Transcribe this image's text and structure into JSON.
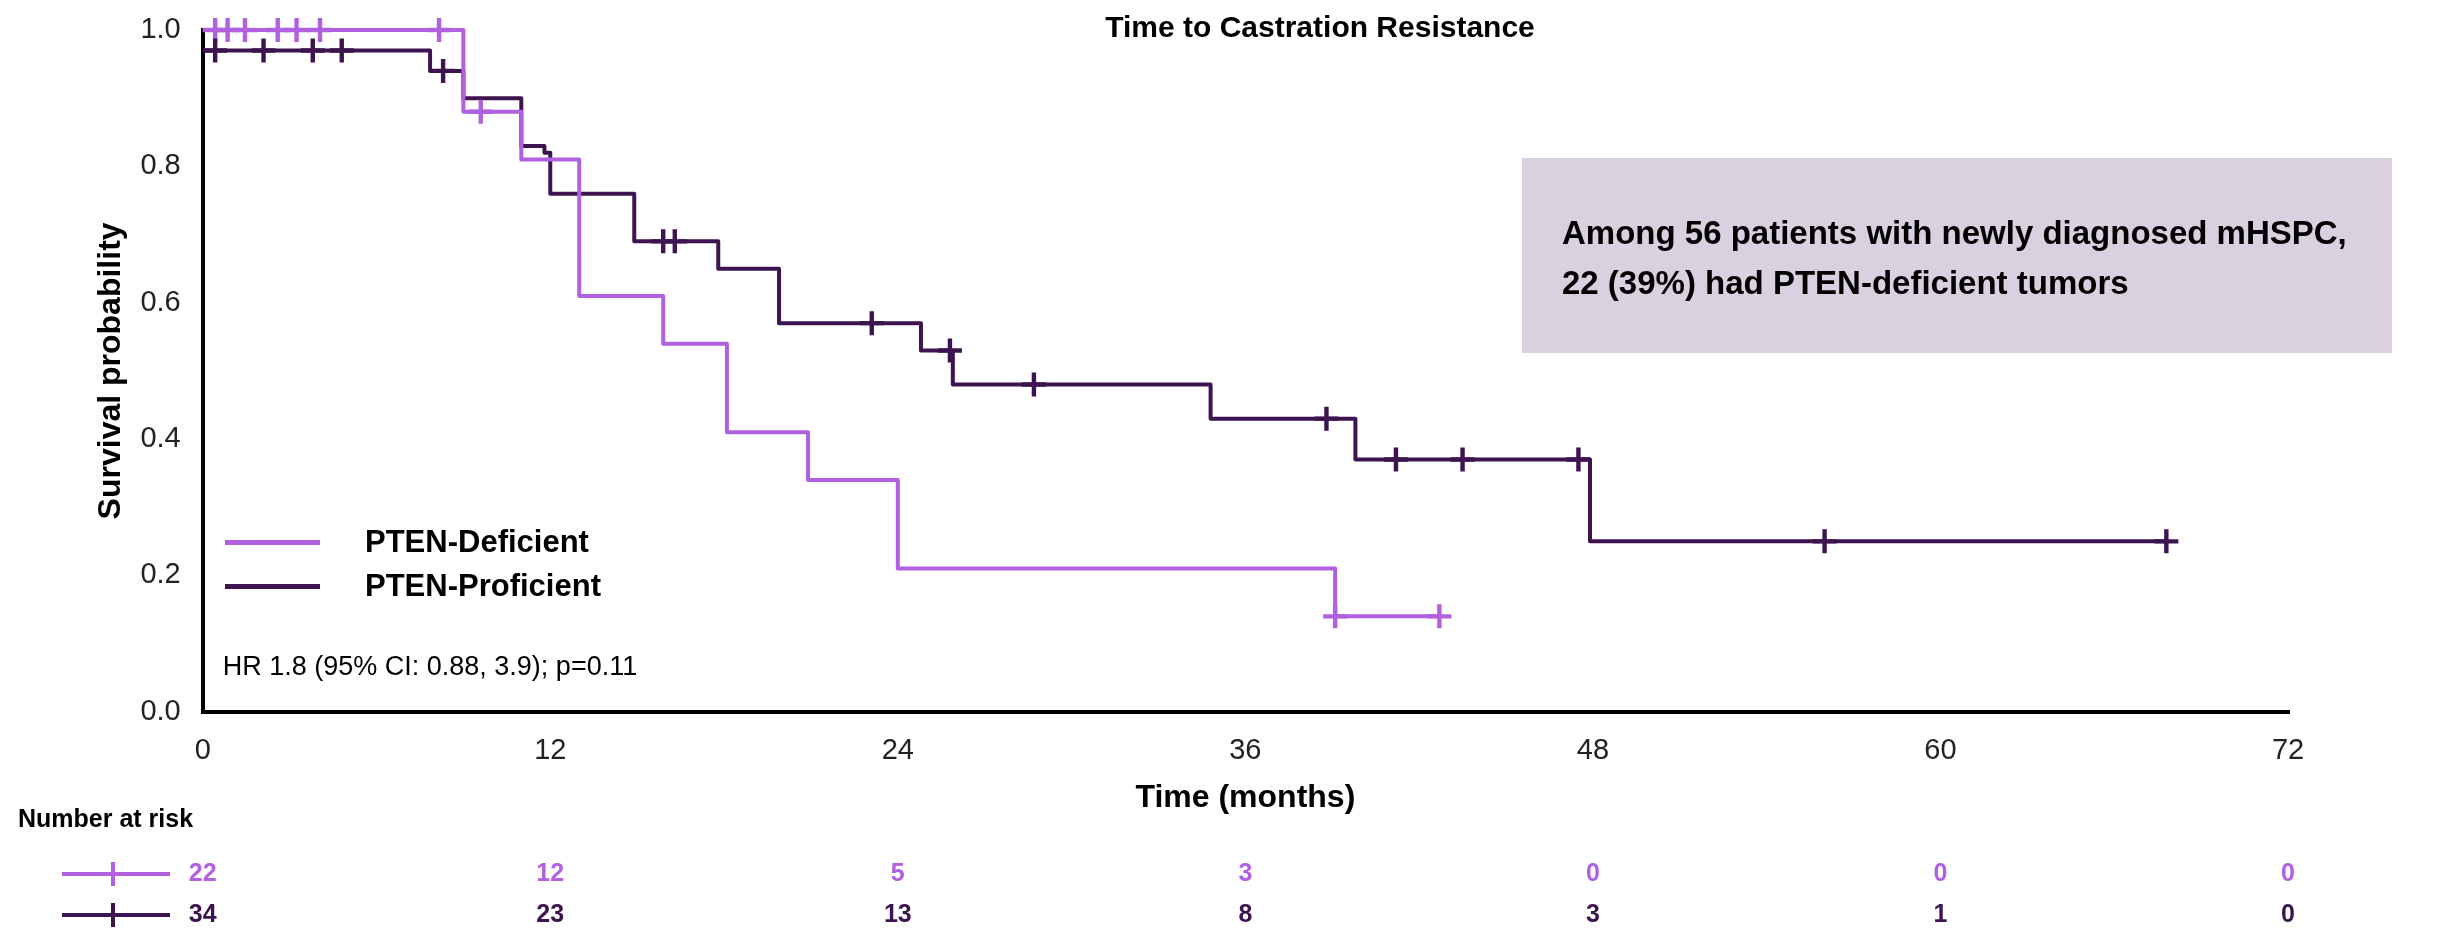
{
  "chart_data": {
    "type": "step",
    "title": "Time to Castration Resistance",
    "xlabel": "Time (months)",
    "ylabel": "Survival probability",
    "xlim": [
      0,
      72
    ],
    "xticks": [
      0,
      12,
      24,
      36,
      48,
      60,
      72
    ],
    "ylim": [
      0,
      1
    ],
    "yticks": [
      {
        "value": 0,
        "label": "0.0"
      },
      0.2,
      0.4,
      0.6,
      0.8,
      {
        "value": 1,
        "label": "1.0"
      }
    ],
    "grid": false,
    "legend": "bottom left",
    "series": [
      {
        "name": "PTEN-Deficient",
        "color": "#b160e0",
        "type": "step",
        "marker": "none",
        "x": [
          0,
          9,
          11,
          13,
          15.9,
          18.1,
          20.9,
          24,
          39.1,
          42.7
        ],
        "values": [
          1,
          0.88,
          0.81,
          0.61,
          0.54,
          0.41,
          0.34,
          0.21,
          0.14,
          0.14
        ]
      },
      {
        "name": "PTEN-Proficient",
        "color": "#3d1450",
        "type": "step",
        "marker": "none",
        "x": [
          0,
          7.85,
          9,
          11,
          11.8,
          12,
          14.9,
          17.8,
          19.9,
          24.8,
          25.9,
          34.8,
          39.8,
          47.9,
          67.8
        ],
        "values": [
          0.97,
          0.94,
          0.9,
          0.83,
          0.82,
          0.76,
          0.69,
          0.65,
          0.57,
          0.53,
          0.48,
          0.43,
          0.37,
          0.25,
          0.25
        ]
      },
      {
        "color": "#b160e0",
        "type": "scatter",
        "marker": "cross",
        "x": [
          0.43,
          0.86,
          1.46,
          2.59,
          3.24,
          4.05,
          8.16,
          9.6,
          39.1,
          42.7
        ],
        "values": [
          1,
          1,
          1,
          1,
          1,
          1,
          1,
          0.88,
          0.14,
          0.14
        ]
      },
      {
        "color": "#3d1450",
        "type": "scatter",
        "marker": "cross",
        "x": [
          0.43,
          2.1,
          3.8,
          4.8,
          8.3,
          15.9,
          16.3,
          23.1,
          25.8,
          28.7,
          38.8,
          41.2,
          43.5,
          47.5,
          56,
          67.8
        ],
        "values": [
          0.97,
          0.97,
          0.97,
          0.97,
          0.94,
          0.69,
          0.69,
          0.57,
          0.53,
          0.48,
          0.43,
          0.37,
          0.37,
          0.37,
          0.25,
          0.25
        ]
      }
    ],
    "annotations": [
      "HR 1.8 (95% CI: 0.88, 3.9); p=0.11",
      "Among 56 patients with newly diagnosed mHSPC, 22 (39%) had PTEN-deficient tumors",
      "Number at risk",
      "22",
      "12",
      "5",
      "3",
      "0",
      "0",
      "0",
      "34",
      "23",
      "13",
      "8",
      "3",
      "1",
      "0"
    ]
  }
}
